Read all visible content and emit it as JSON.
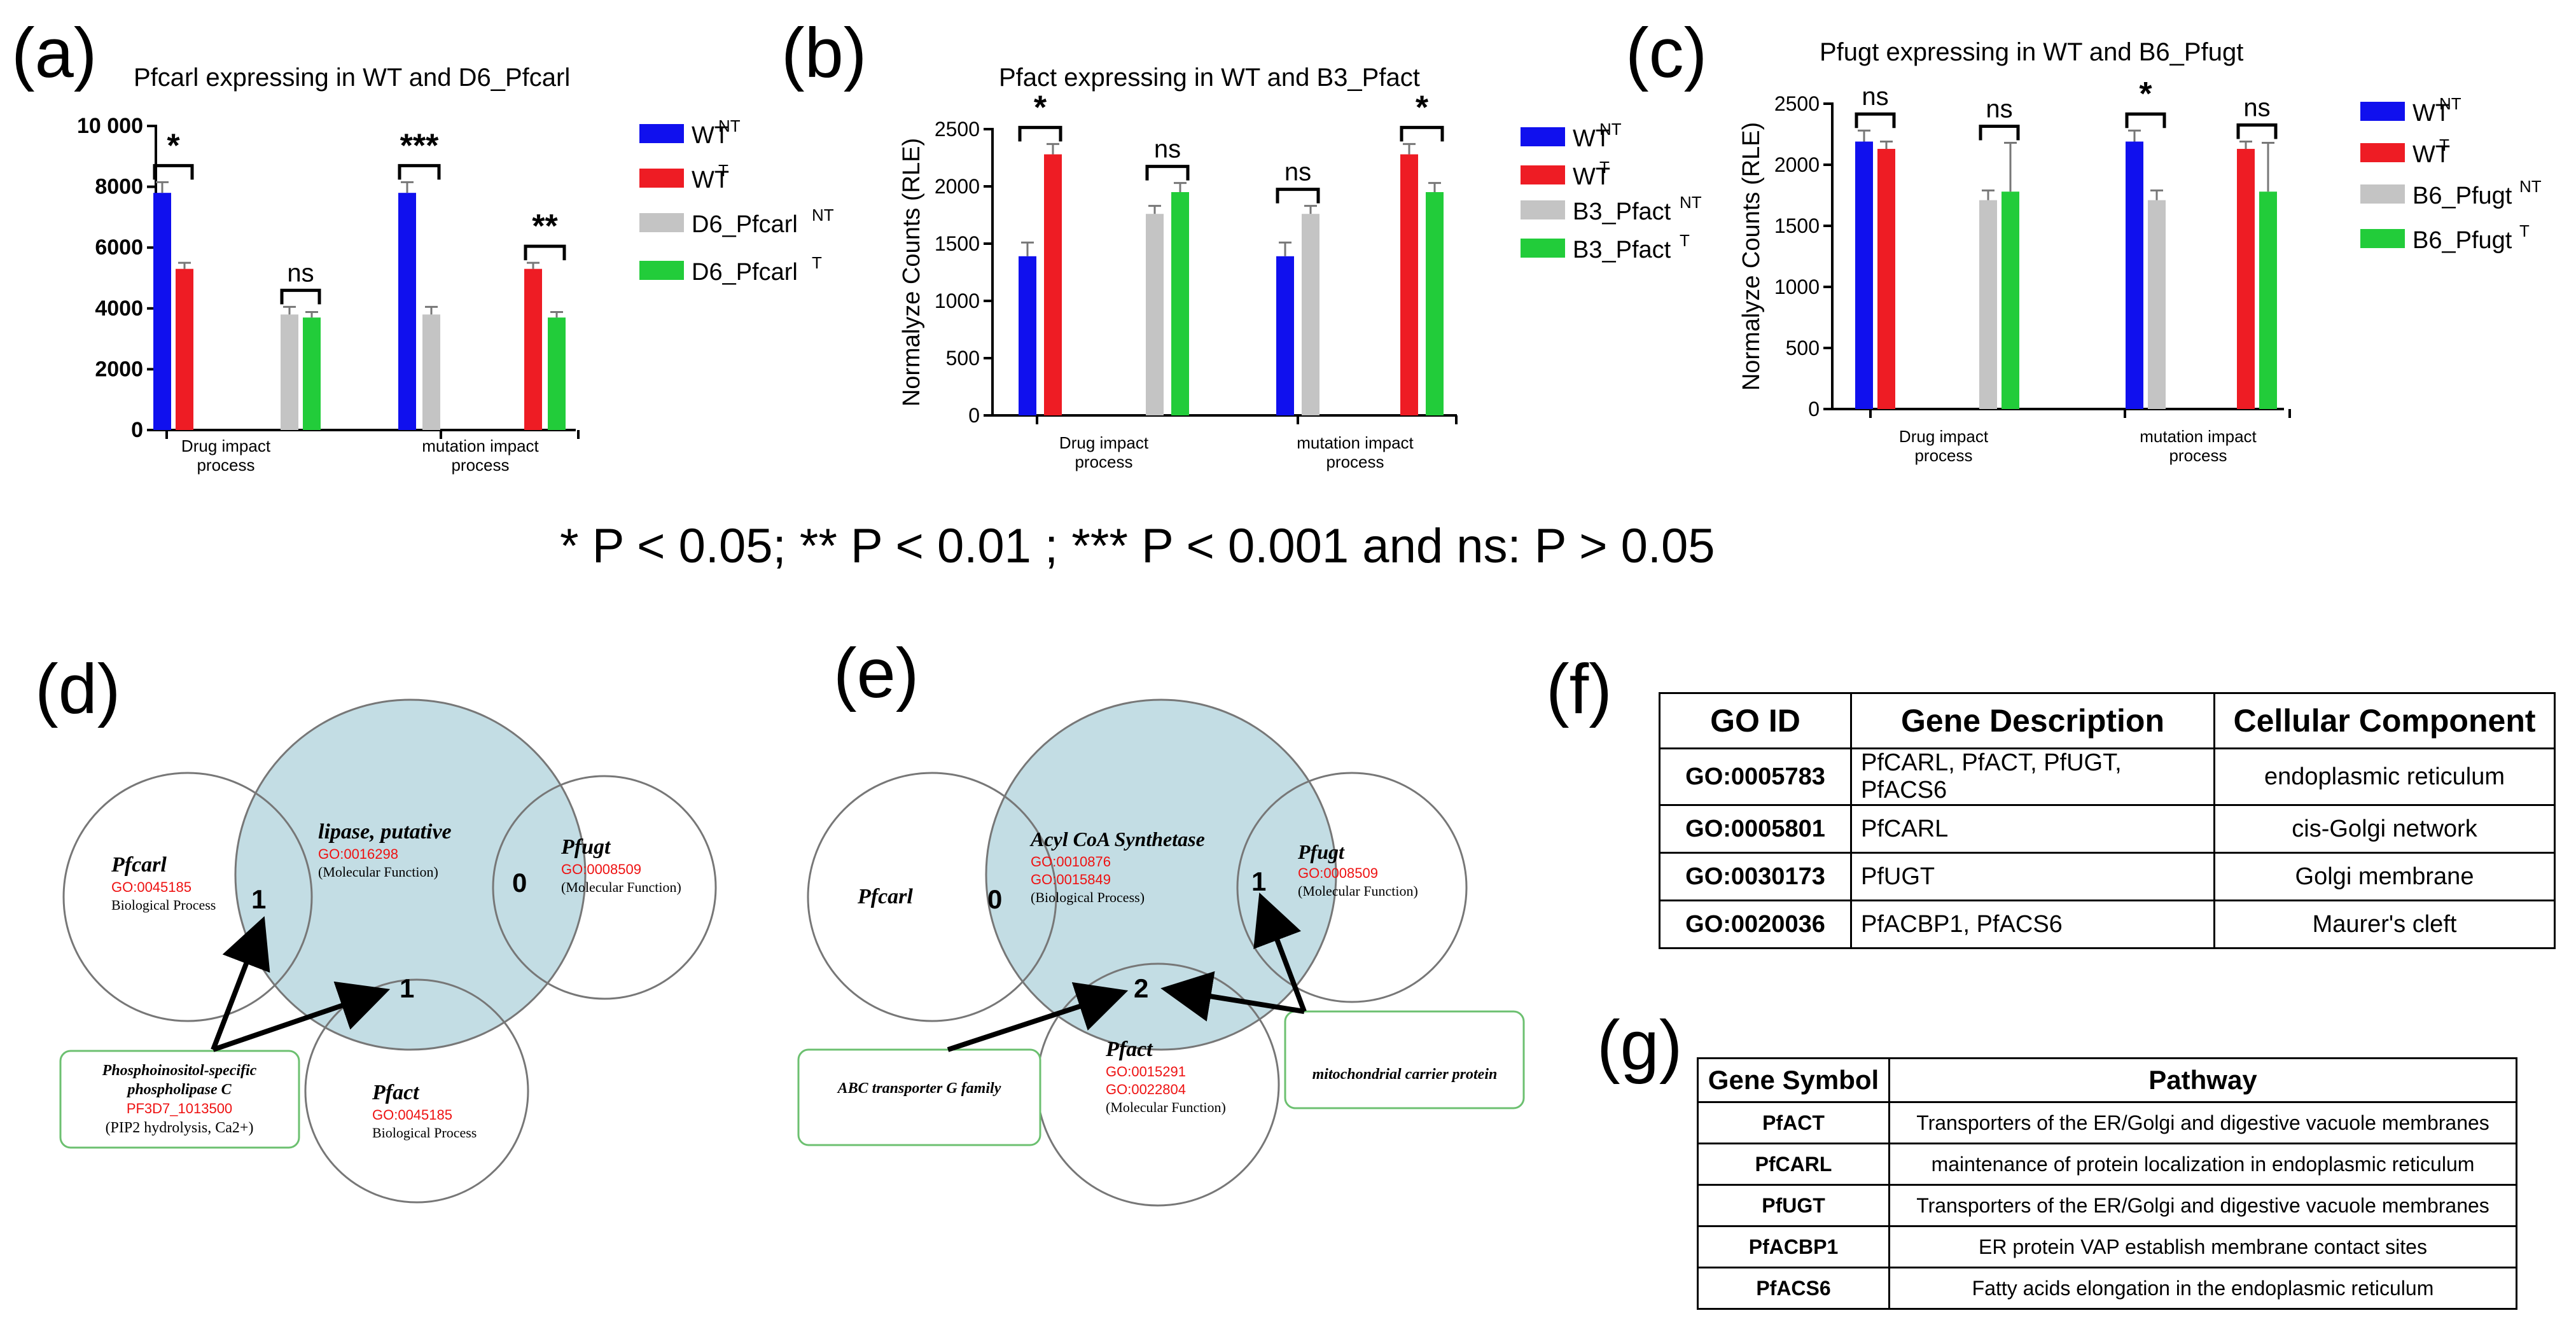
{
  "panels": {
    "a": "(a)",
    "b": "(b)",
    "c": "(c)",
    "d": "(d)",
    "e": "(e)",
    "f": "(f)",
    "g": "(g)"
  },
  "significance_note": "* P < 0.05; ** P < 0.01 ; *** P < 0.001 and ns: P > 0.05",
  "colors": {
    "wt_nt": "#1010ee",
    "wt_t": "#ee1c24",
    "mut_nt": "#c4c4c4",
    "mut_t": "#22cc3a",
    "go": "#ee1111",
    "venn_fill": "#a9ced8"
  },
  "chart_data": [
    {
      "id": "a",
      "type": "bar",
      "title": "Pfcarl  expressing in WT and D6_Pfcarl",
      "ylabel": "",
      "ylim": [
        0,
        10000
      ],
      "yticks": [
        0,
        2000,
        4000,
        6000,
        8000,
        10000
      ],
      "ytick_labels": [
        "0",
        "2000",
        "4000",
        "6000",
        "8000",
        "10 000"
      ],
      "categories": [
        "Drug impact process",
        "mutation impact process"
      ],
      "legend": [
        {
          "base": "WT",
          "sup": "NT"
        },
        {
          "base": "WT",
          "sup": "T"
        },
        {
          "base": "D6_Pfcarl",
          "sup": "NT"
        },
        {
          "base": "D6_Pfcarl",
          "sup": "T"
        }
      ],
      "bars": [
        {
          "series": 0,
          "value": 7800,
          "err": 350
        },
        {
          "series": 1,
          "value": 5300,
          "err": 200
        },
        {
          "series": 2,
          "value": 3800,
          "err": 250
        },
        {
          "series": 3,
          "value": 3700,
          "err": 180
        },
        {
          "series": 0,
          "value": 7800,
          "err": 350
        },
        {
          "series": 2,
          "value": 3800,
          "err": 250
        },
        {
          "series": 1,
          "value": 5300,
          "err": 200
        },
        {
          "series": 3,
          "value": 3700,
          "err": 180
        }
      ],
      "annotations": [
        "*",
        "ns",
        "***",
        "**"
      ]
    },
    {
      "id": "b",
      "type": "bar",
      "title": "Pfact  expressing in WT and B3_Pfact",
      "ylabel": "Normalyze Counts (RLE)",
      "ylim": [
        0,
        2500
      ],
      "yticks": [
        0,
        500,
        1000,
        1500,
        2000,
        2500
      ],
      "ytick_labels": [
        "0",
        "500",
        "1000",
        "1500",
        "2000",
        "2500"
      ],
      "categories": [
        "Drug impact process",
        "mutation impact process"
      ],
      "legend": [
        {
          "base": "WT",
          "sup": "NT"
        },
        {
          "base": "WT",
          "sup": "T"
        },
        {
          "base": "B3_Pfact",
          "sup": "NT"
        },
        {
          "base": "B3_Pfact",
          "sup": "T"
        }
      ],
      "bars": [
        {
          "series": 0,
          "value": 1390,
          "err": 120
        },
        {
          "series": 1,
          "value": 2280,
          "err": 90
        },
        {
          "series": 2,
          "value": 1760,
          "err": 70
        },
        {
          "series": 3,
          "value": 1950,
          "err": 80
        },
        {
          "series": 0,
          "value": 1390,
          "err": 120
        },
        {
          "series": 2,
          "value": 1760,
          "err": 70
        },
        {
          "series": 1,
          "value": 2280,
          "err": 90
        },
        {
          "series": 3,
          "value": 1950,
          "err": 80
        }
      ],
      "annotations": [
        "*",
        "ns",
        "ns",
        "*"
      ]
    },
    {
      "id": "c",
      "type": "bar",
      "title": "Pfugt  expressing in WT and B6_Pfugt",
      "ylabel": "Normalyze Counts (RLE)",
      "ylim": [
        0,
        2500
      ],
      "yticks": [
        0,
        500,
        1000,
        1500,
        2000,
        2500
      ],
      "ytick_labels": [
        "0",
        "500",
        "1000",
        "1500",
        "2000",
        "2500"
      ],
      "categories": [
        "Drug impact process",
        "mutation impact process"
      ],
      "legend": [
        {
          "base": "WT",
          "sup": "NT"
        },
        {
          "base": "WT",
          "sup": "T"
        },
        {
          "base": "B6_Pfugt",
          "sup": "NT"
        },
        {
          "base": "B6_Pfugt",
          "sup": "T"
        }
      ],
      "bars": [
        {
          "series": 0,
          "value": 2190,
          "err": 90
        },
        {
          "series": 1,
          "value": 2130,
          "err": 60
        },
        {
          "series": 2,
          "value": 1710,
          "err": 80
        },
        {
          "series": 3,
          "value": 1780,
          "err": 400
        },
        {
          "series": 0,
          "value": 2190,
          "err": 90
        },
        {
          "series": 2,
          "value": 1710,
          "err": 80
        },
        {
          "series": 1,
          "value": 2130,
          "err": 60
        },
        {
          "series": 3,
          "value": 1780,
          "err": 400
        }
      ],
      "annotations": [
        "ns",
        "ns",
        "*",
        "ns"
      ]
    }
  ],
  "venn_d": {
    "pfcarl": {
      "name": "Pfcarl",
      "go": "GO:0045185",
      "desc": "Biological Process"
    },
    "lipase": {
      "name": "lipase, putative",
      "go": "GO:0016298",
      "desc": "(Molecular Function)"
    },
    "pfugt": {
      "name": "Pfugt",
      "go": "GO:0008509",
      "desc": "(Molecular Function)"
    },
    "pfact": {
      "name": "Pfact",
      "go": "GO:0045185",
      "desc": "Biological Process"
    },
    "counts": [
      "1",
      "0",
      "1"
    ],
    "note": {
      "line1": "Phosphoinositol-specific",
      "line2": "phospholipase C",
      "id": "PF3D7_1013500",
      "desc": "(PIP2 hydrolysis, Ca2+)"
    }
  },
  "venn_e": {
    "pfcarl": {
      "name": "Pfcarl"
    },
    "acyl": {
      "name": "Acyl CoA Synthetase",
      "go1": "GO:0010876",
      "go2": "GO:0015849",
      "desc": "(Biological Process)"
    },
    "pfugt": {
      "name": "Pfugt",
      "go": "GO:0008509",
      "desc": "(Molecular Function)"
    },
    "pfact": {
      "name": "Pfact",
      "go1": "GO:0015291",
      "go2": "GO:0022804",
      "desc": "(Molecular Function)"
    },
    "counts": [
      "0",
      "1",
      "2"
    ],
    "note_left": "ABC transporter G family",
    "note_right": "mitochondrial carrier protein"
  },
  "table_f": {
    "headers": [
      "GO ID",
      "Gene Description",
      "Cellular Component"
    ],
    "rows": [
      [
        "GO:0005783",
        "PfCARL, PfACT, PfUGT, PfACS6",
        "endoplasmic reticulum"
      ],
      [
        "GO:0005801",
        "PfCARL",
        "cis-Golgi network"
      ],
      [
        "GO:0030173",
        "PfUGT",
        "Golgi membrane"
      ],
      [
        "GO:0020036",
        "PfACBP1, PfACS6",
        "Maurer's cleft"
      ]
    ]
  },
  "table_g": {
    "headers": [
      "Gene Symbol",
      "Pathway"
    ],
    "rows": [
      [
        "PfACT",
        "Transporters of the ER/Golgi and digestive vacuole membranes"
      ],
      [
        "PfCARL",
        "maintenance of protein localization in endoplasmic reticulum"
      ],
      [
        "PfUGT",
        "Transporters of the ER/Golgi and digestive vacuole membranes"
      ],
      [
        "PfACBP1",
        "ER protein VAP establish membrane contact sites"
      ],
      [
        "PfACS6",
        "Fatty acids elongation in the endoplasmic reticulum"
      ]
    ]
  }
}
